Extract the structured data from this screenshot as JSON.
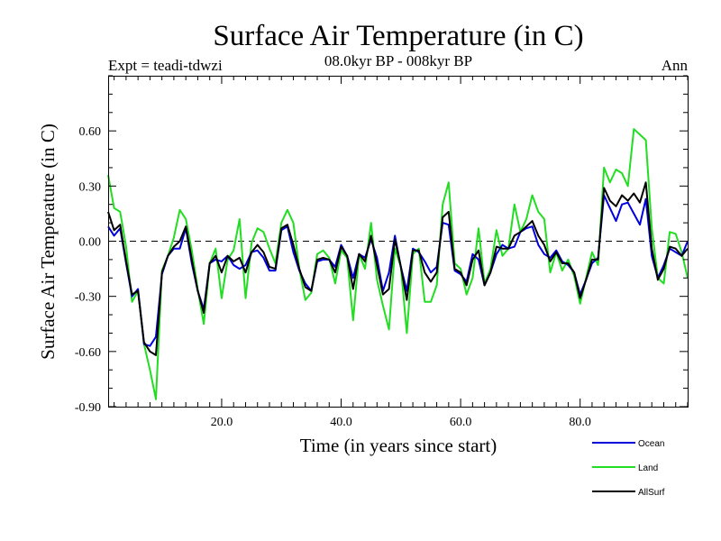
{
  "chart_data": {
    "type": "line",
    "title": "Surface Air Temperature (in C)",
    "subtitle": "08.0kyr BP - 008kyr BP",
    "expt_label": "Expt = teadi-tdwzi",
    "season_label": "Ann",
    "xlabel": "Time (in years since start)",
    "ylabel": "Surface Air Temperature (in C)",
    "xlim": [
      1,
      98
    ],
    "ylim": [
      -0.9,
      0.9
    ],
    "xticks": [
      20,
      40,
      60,
      80
    ],
    "xtick_labels": [
      "20.0",
      "40.0",
      "60.0",
      "80.0"
    ],
    "yticks": [
      -0.9,
      -0.6,
      -0.3,
      0.0,
      0.3,
      0.6
    ],
    "ytick_labels": [
      "-0.90",
      "-0.60",
      "-0.30",
      "0.00",
      "0.30",
      "0.60"
    ],
    "zero_line": "dashed",
    "legend_position": "bottom-right",
    "x": [
      1,
      2,
      3,
      4,
      5,
      6,
      7,
      8,
      9,
      10,
      11,
      12,
      13,
      14,
      15,
      16,
      17,
      18,
      19,
      20,
      21,
      22,
      23,
      24,
      25,
      26,
      27,
      28,
      29,
      30,
      31,
      32,
      33,
      34,
      35,
      36,
      37,
      38,
      39,
      40,
      41,
      42,
      43,
      44,
      45,
      46,
      47,
      48,
      49,
      50,
      51,
      52,
      53,
      54,
      55,
      56,
      57,
      58,
      59,
      60,
      61,
      62,
      63,
      64,
      65,
      66,
      67,
      68,
      69,
      70,
      71,
      72,
      73,
      74,
      75,
      76,
      77,
      78,
      79,
      80,
      81,
      82,
      83,
      84,
      85,
      86,
      87,
      88,
      89,
      90,
      91,
      92,
      93,
      94,
      95,
      96,
      97,
      98
    ],
    "series": [
      {
        "name": "Ocean",
        "color": "#0000dd",
        "values": [
          0.08,
          0.03,
          0.07,
          -0.12,
          -0.3,
          -0.26,
          -0.56,
          -0.57,
          -0.52,
          -0.18,
          -0.08,
          -0.04,
          -0.04,
          0.07,
          -0.12,
          -0.27,
          -0.37,
          -0.12,
          -0.1,
          -0.11,
          -0.08,
          -0.13,
          -0.15,
          -0.13,
          -0.06,
          -0.05,
          -0.09,
          -0.16,
          -0.16,
          0.06,
          0.08,
          -0.06,
          -0.16,
          -0.23,
          -0.27,
          -0.11,
          -0.1,
          -0.1,
          -0.14,
          -0.02,
          -0.08,
          -0.2,
          -0.07,
          -0.09,
          0.01,
          -0.09,
          -0.27,
          -0.17,
          0.03,
          -0.14,
          -0.27,
          -0.04,
          -0.06,
          -0.11,
          -0.17,
          -0.14,
          0.1,
          0.09,
          -0.16,
          -0.18,
          -0.22,
          -0.07,
          -0.1,
          -0.24,
          -0.17,
          -0.07,
          -0.02,
          -0.04,
          -0.03,
          0.05,
          0.07,
          0.08,
          -0.02,
          -0.07,
          -0.09,
          -0.05,
          -0.11,
          -0.13,
          -0.17,
          -0.29,
          -0.21,
          -0.12,
          -0.09,
          0.25,
          0.18,
          0.11,
          0.2,
          0.21,
          0.15,
          0.09,
          0.23,
          -0.08,
          -0.2,
          -0.13,
          -0.04,
          -0.06,
          -0.08,
          0.0
        ]
      },
      {
        "name": "Land",
        "color": "#22dd22",
        "values": [
          0.36,
          0.18,
          0.16,
          -0.03,
          -0.33,
          -0.27,
          -0.56,
          -0.7,
          -0.86,
          -0.16,
          -0.08,
          0.02,
          0.17,
          0.12,
          -0.05,
          -0.26,
          -0.45,
          -0.12,
          -0.04,
          -0.31,
          -0.1,
          -0.05,
          0.12,
          -0.31,
          -0.01,
          0.07,
          0.05,
          -0.04,
          -0.12,
          0.1,
          0.17,
          0.1,
          -0.15,
          -0.32,
          -0.28,
          -0.07,
          -0.05,
          -0.09,
          -0.23,
          -0.05,
          -0.09,
          -0.43,
          -0.07,
          -0.15,
          0.1,
          -0.21,
          -0.35,
          -0.48,
          -0.04,
          -0.14,
          -0.5,
          -0.07,
          -0.04,
          -0.33,
          -0.33,
          -0.24,
          0.2,
          0.32,
          -0.12,
          -0.15,
          -0.29,
          -0.2,
          0.07,
          -0.23,
          -0.15,
          0.06,
          -0.08,
          -0.04,
          0.2,
          0.05,
          0.12,
          0.25,
          0.16,
          0.12,
          -0.17,
          -0.06,
          -0.16,
          -0.1,
          -0.19,
          -0.34,
          -0.2,
          -0.06,
          -0.13,
          0.4,
          0.32,
          0.39,
          0.37,
          0.3,
          0.61,
          0.58,
          0.55,
          0.07,
          -0.2,
          -0.23,
          0.05,
          0.04,
          -0.06,
          -0.2
        ]
      },
      {
        "name": "AllSurf",
        "color": "#000000",
        "values": [
          0.16,
          0.06,
          0.09,
          -0.11,
          -0.29,
          -0.27,
          -0.55,
          -0.6,
          -0.62,
          -0.17,
          -0.08,
          -0.03,
          0.0,
          0.08,
          -0.1,
          -0.27,
          -0.39,
          -0.12,
          -0.08,
          -0.17,
          -0.08,
          -0.11,
          -0.09,
          -0.17,
          -0.06,
          -0.02,
          -0.06,
          -0.14,
          -0.15,
          0.07,
          0.09,
          -0.02,
          -0.15,
          -0.25,
          -0.27,
          -0.1,
          -0.09,
          -0.1,
          -0.17,
          -0.03,
          -0.08,
          -0.26,
          -0.07,
          -0.11,
          0.03,
          -0.13,
          -0.29,
          -0.26,
          0.01,
          -0.14,
          -0.32,
          -0.05,
          -0.05,
          -0.17,
          -0.22,
          -0.17,
          0.13,
          0.16,
          -0.15,
          -0.17,
          -0.24,
          -0.1,
          -0.05,
          -0.24,
          -0.17,
          -0.03,
          -0.04,
          -0.04,
          0.03,
          0.05,
          0.08,
          0.11,
          0.03,
          -0.02,
          -0.11,
          -0.06,
          -0.12,
          -0.12,
          -0.17,
          -0.31,
          -0.21,
          -0.1,
          -0.1,
          0.29,
          0.22,
          0.19,
          0.25,
          0.22,
          0.26,
          0.21,
          0.32,
          -0.04,
          -0.21,
          -0.15,
          -0.03,
          -0.04,
          -0.08,
          -0.04
        ]
      }
    ]
  }
}
